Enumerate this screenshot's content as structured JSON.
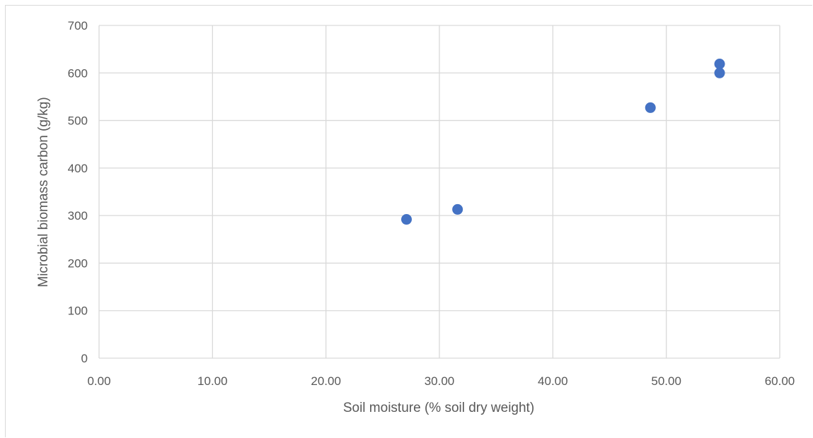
{
  "chart_data": {
    "type": "scatter",
    "title": "",
    "xlabel": "Soil moisture (% soil dry weight)",
    "ylabel": "Microbial biomass carbon (g/kg)",
    "xlim": [
      0,
      60
    ],
    "ylim": [
      0,
      700
    ],
    "x_ticks": [
      0,
      10,
      20,
      30,
      40,
      50,
      60
    ],
    "x_tick_labels": [
      "0.00",
      "10.00",
      "20.00",
      "30.00",
      "40.00",
      "50.00",
      "60.00"
    ],
    "y_ticks": [
      0,
      100,
      200,
      300,
      400,
      500,
      600,
      700
    ],
    "y_tick_labels": [
      "0",
      "100",
      "200",
      "300",
      "400",
      "500",
      "600",
      "700"
    ],
    "grid": true,
    "legend": "none",
    "marker_color": "#4472c4",
    "grid_color": "#d9d9d9",
    "series": [
      {
        "x": [
          27.1,
          31.6,
          48.6,
          54.7,
          54.7
        ],
        "y": [
          292,
          313,
          527,
          619,
          600
        ]
      }
    ]
  }
}
